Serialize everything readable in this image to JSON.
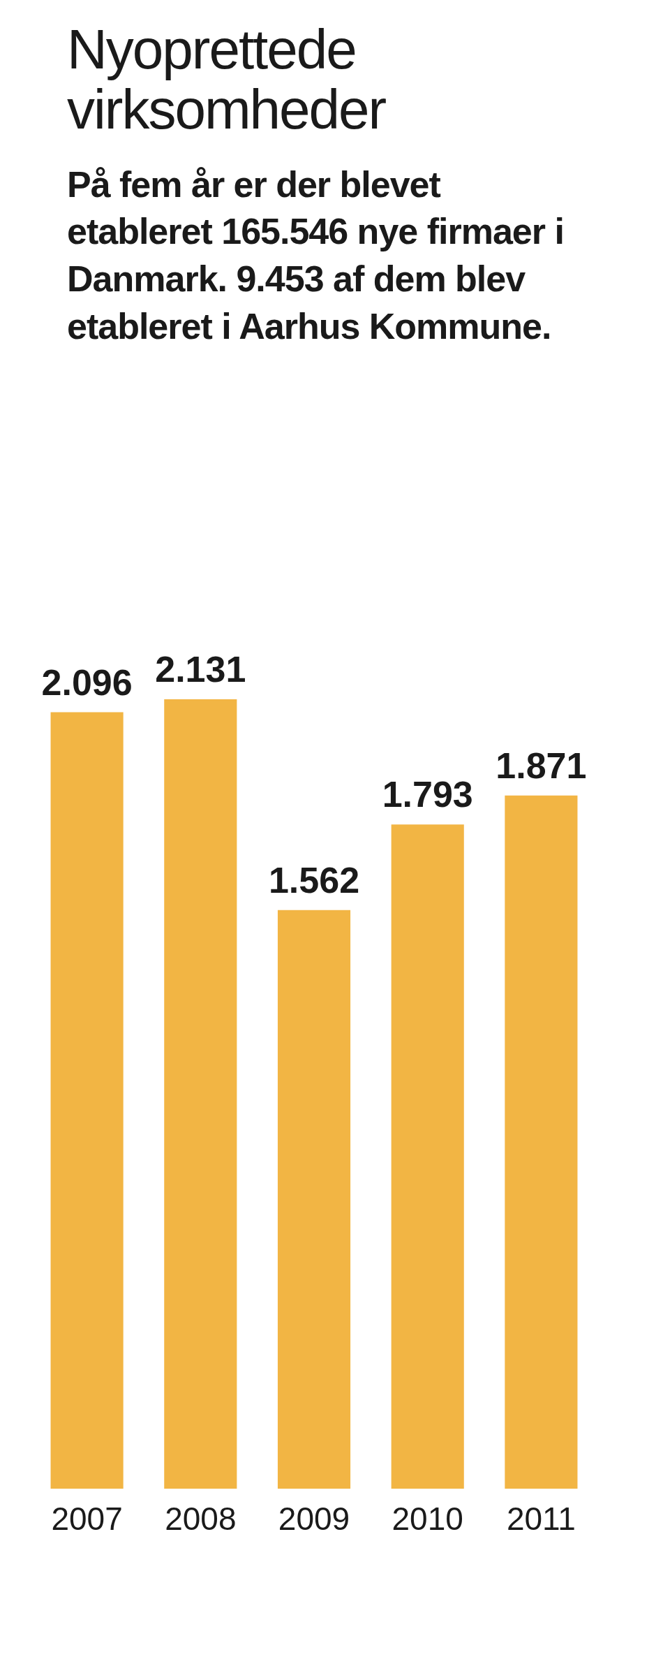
{
  "chart_data": {
    "type": "bar",
    "title": "Nyoprettede virksomheder",
    "subtitle": "På fem år er der blevet etableret 165.546 nye firmaer i Danmark. 9.453 af dem blev etableret i Aarhus Kommune.",
    "categories": [
      "2007",
      "2008",
      "2009",
      "2010",
      "2011"
    ],
    "values": [
      2096,
      2131,
      1562,
      1793,
      1871
    ],
    "value_labels": [
      "2.096",
      "2.131",
      "1.562",
      "1.793",
      "1.871"
    ],
    "color": "#f2b544"
  }
}
